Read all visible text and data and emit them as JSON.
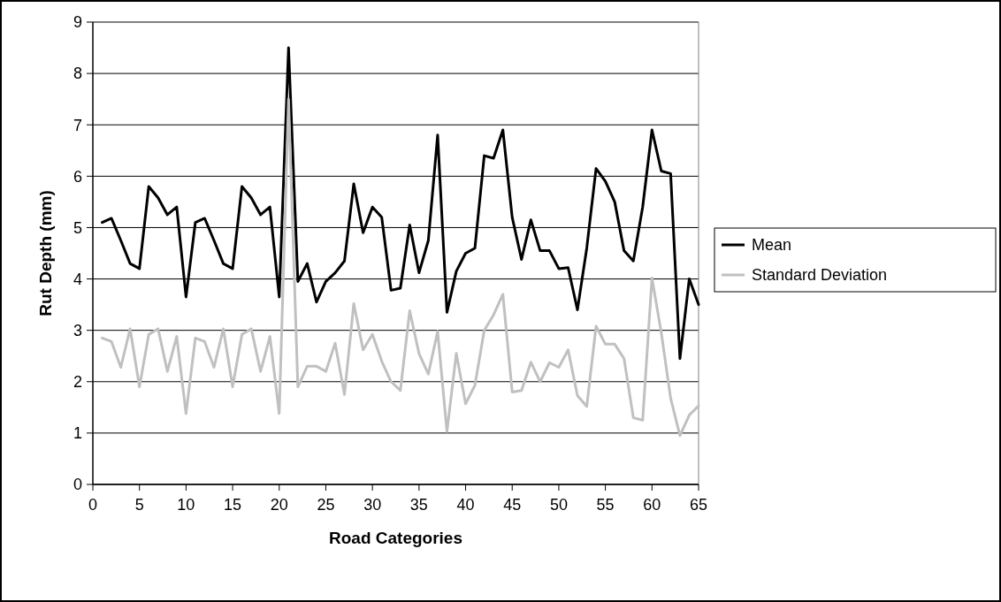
{
  "chart_data": {
    "type": "line",
    "xlabel": "Road Categories",
    "ylabel": "Rut Depth (mm)",
    "x": [
      1,
      2,
      3,
      4,
      5,
      6,
      7,
      8,
      9,
      10,
      11,
      12,
      13,
      14,
      15,
      16,
      17,
      18,
      19,
      20,
      21,
      22,
      23,
      24,
      25,
      26,
      27,
      28,
      29,
      30,
      31,
      32,
      33,
      34,
      35,
      36,
      37,
      38,
      39,
      40,
      41,
      42,
      43,
      44,
      45,
      46,
      47,
      48,
      49,
      50,
      51,
      52,
      53,
      54,
      55,
      56,
      57,
      58,
      59,
      60,
      61,
      62,
      63,
      64,
      65
    ],
    "series": [
      {
        "name": "Mean",
        "color": "#000000",
        "values": [
          5.1,
          5.18,
          4.75,
          4.3,
          4.2,
          5.8,
          5.58,
          5.25,
          5.4,
          3.65,
          5.1,
          5.18,
          4.75,
          4.3,
          4.2,
          5.8,
          5.58,
          5.25,
          5.4,
          3.65,
          8.5,
          3.95,
          4.3,
          3.55,
          3.95,
          4.12,
          4.35,
          5.85,
          4.9,
          5.4,
          5.2,
          3.78,
          3.82,
          5.05,
          4.12,
          4.75,
          6.8,
          3.35,
          4.15,
          4.5,
          4.6,
          6.4,
          6.35,
          6.9,
          5.2,
          4.38,
          5.15,
          4.55,
          4.55,
          4.2,
          4.22,
          3.4,
          4.6,
          6.15,
          5.9,
          5.5,
          4.55,
          4.35,
          5.4,
          6.9,
          6.1,
          6.05,
          2.45,
          4.0,
          3.5
        ]
      },
      {
        "name": "Standard Deviation",
        "color": "#c0c0c0",
        "values": [
          2.85,
          2.78,
          2.28,
          3.03,
          1.9,
          2.92,
          3.03,
          2.2,
          2.88,
          1.38,
          2.85,
          2.78,
          2.28,
          3.03,
          1.9,
          2.92,
          3.03,
          2.2,
          2.88,
          1.38,
          7.5,
          1.9,
          2.3,
          2.3,
          2.2,
          2.75,
          1.75,
          3.52,
          2.62,
          2.92,
          2.4,
          2.0,
          1.83,
          3.38,
          2.55,
          2.15,
          2.98,
          1.03,
          2.55,
          1.57,
          1.93,
          3.0,
          3.3,
          3.7,
          1.8,
          1.83,
          2.38,
          2.0,
          2.37,
          2.28,
          2.62,
          1.73,
          1.52,
          3.08,
          2.73,
          2.73,
          2.45,
          1.3,
          1.25,
          4.02,
          2.95,
          1.68,
          0.95,
          1.35,
          1.53
        ]
      }
    ],
    "xlim": [
      0,
      65
    ],
    "xticks": [
      0,
      5,
      10,
      15,
      20,
      25,
      30,
      35,
      40,
      45,
      50,
      55,
      60,
      65
    ],
    "ylim": [
      0,
      9
    ],
    "yticks": [
      0,
      1,
      2,
      3,
      4,
      5,
      6,
      7,
      8,
      9
    ],
    "grid": "y",
    "legend": "right",
    "marker": "none",
    "line_style": "solid"
  }
}
